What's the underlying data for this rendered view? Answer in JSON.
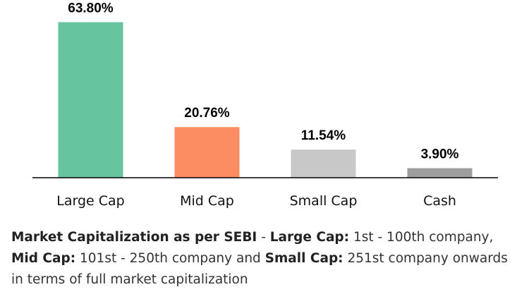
{
  "chart_data": {
    "type": "bar",
    "categories": [
      "Large Cap",
      "Mid Cap",
      "Small Cap",
      "Cash"
    ],
    "values": [
      63.8,
      20.76,
      11.54,
      3.9
    ],
    "value_labels": [
      "63.80%",
      "20.76%",
      "11.54%",
      "3.90%"
    ],
    "colors": [
      "#66c59f",
      "#fc8c62",
      "#c8c8c8",
      "#9e9e9e"
    ],
    "ylim": [
      0,
      70
    ],
    "grid": false,
    "legend": "none",
    "axis_color": "#000000"
  },
  "footnote": {
    "part1_bold": "Market Capitalization as per SEBI",
    "part2": " - ",
    "part3_bold": "Large Cap:",
    "part4": " 1st - 100th company, ",
    "part5_bold": "Mid Cap:",
    "part6": " 101st - 250th company and ",
    "part7_bold": "Small Cap:",
    "part8": " 251st company onwards in terms of full market capitalization"
  }
}
